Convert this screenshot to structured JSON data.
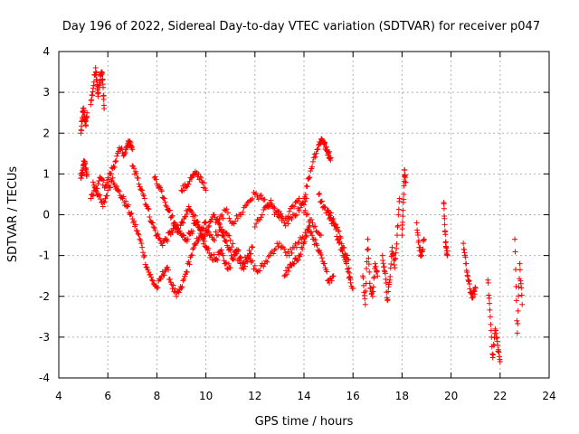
{
  "chart_data": {
    "type": "scatter",
    "title": "Day 196 of 2022, Sidereal Day-to-day VTEC variation (SDTVAR) for receiver p047",
    "xlabel": "GPS time / hours",
    "ylabel": "SDTVAR / TECUs",
    "xlim": [
      4,
      24
    ],
    "ylim": [
      -4,
      4
    ],
    "xticks": [
      "4",
      "6",
      "8",
      "10",
      "12",
      "14",
      "16",
      "18",
      "20",
      "22",
      "24"
    ],
    "yticks": [
      "-4",
      "-3",
      "-2",
      "-1",
      "0",
      "1",
      "2",
      "3",
      "4"
    ],
    "grid": true,
    "marker": "+",
    "color": "#ff0000",
    "series": [
      {
        "name": "SDTVAR",
        "segments": [
          {
            "x": [
              4.9,
              4.95,
              5.0,
              5.05,
              5.1,
              5.15
            ],
            "y": [
              2.0,
              2.3,
              2.6,
              2.4,
              2.2,
              2.5
            ]
          },
          {
            "x": [
              4.9,
              4.95,
              5.0,
              5.05,
              5.1,
              5.15
            ],
            "y": [
              0.9,
              1.0,
              1.2,
              1.3,
              1.1,
              1.0
            ]
          },
          {
            "x": [
              5.3,
              5.4,
              5.5,
              5.55,
              5.6,
              5.7,
              5.75,
              5.8,
              5.85
            ],
            "y": [
              2.7,
              3.1,
              3.6,
              3.3,
              2.9,
              3.4,
              3.5,
              3.2,
              2.6
            ]
          },
          {
            "x": [
              5.3,
              5.5,
              5.7,
              5.9,
              6.1,
              6.3,
              6.5,
              6.7,
              6.8,
              6.9,
              7.0
            ],
            "y": [
              0.4,
              0.6,
              0.9,
              0.7,
              1.0,
              1.3,
              1.6,
              1.5,
              1.7,
              1.8,
              1.6
            ]
          },
          {
            "x": [
              5.4,
              5.6,
              5.8,
              6.0,
              6.2,
              6.4,
              6.6,
              6.8,
              7.0,
              7.2,
              7.4,
              7.6,
              7.8,
              8.0,
              8.2,
              8.4,
              8.6,
              8.8,
              9.0,
              9.2,
              9.4,
              9.6,
              9.8,
              10.0
            ],
            "y": [
              0.8,
              0.5,
              0.2,
              0.6,
              0.9,
              0.6,
              0.4,
              0.2,
              -0.1,
              -0.4,
              -0.8,
              -1.3,
              -1.6,
              -1.8,
              -1.5,
              -1.3,
              -1.7,
              -2.0,
              -1.8,
              -1.4,
              -1.0,
              -0.7,
              -0.4,
              -0.2
            ]
          },
          {
            "x": [
              7.0,
              7.2,
              7.4,
              7.6,
              7.8,
              8.0,
              8.2,
              8.4,
              8.6,
              8.8,
              9.0,
              9.2,
              9.4,
              9.6,
              9.8,
              10.0,
              10.2,
              10.4,
              10.6,
              10.8,
              11.0
            ],
            "y": [
              1.2,
              0.9,
              0.6,
              0.2,
              -0.2,
              -0.5,
              -0.7,
              -0.6,
              -0.4,
              -0.3,
              -0.5,
              -0.6,
              -0.4,
              -0.2,
              -0.5,
              -0.8,
              -1.0,
              -1.1,
              -0.9,
              -1.2,
              -1.3
            ]
          },
          {
            "x": [
              7.9,
              8.1,
              8.3,
              8.5,
              8.7,
              8.9,
              9.1,
              9.3,
              9.5,
              9.7,
              9.9,
              10.1,
              10.3,
              10.5,
              10.7,
              10.9,
              11.1,
              11.3,
              11.5,
              11.7,
              11.9
            ],
            "y": [
              0.9,
              0.7,
              0.4,
              0.1,
              -0.2,
              -0.4,
              -0.1,
              0.2,
              0.0,
              -0.3,
              -0.6,
              -0.3,
              0.0,
              -0.2,
              -0.5,
              -0.8,
              -1.1,
              -0.9,
              -1.2,
              -1.0,
              -0.8
            ]
          },
          {
            "x": [
              9.0,
              9.2,
              9.4,
              9.6,
              9.8,
              10.0
            ],
            "y": [
              0.6,
              0.7,
              0.9,
              1.0,
              0.9,
              0.6
            ]
          },
          {
            "x": [
              10.0,
              10.3,
              10.6,
              10.9,
              11.2,
              11.5,
              11.8,
              12.1,
              12.4,
              12.7,
              13.0,
              13.3,
              13.6,
              13.9,
              14.2
            ],
            "y": [
              -0.4,
              -0.6,
              -0.3,
              -0.5,
              -0.9,
              -1.3,
              -1.1,
              -1.4,
              -1.2,
              -0.9,
              -0.7,
              -1.0,
              -0.8,
              -0.6,
              -0.4
            ]
          },
          {
            "x": [
              10.5,
              10.8,
              11.1,
              11.4,
              11.7,
              12.0,
              12.3,
              12.6,
              12.9,
              13.2,
              13.5,
              13.8,
              14.1
            ],
            "y": [
              -0.2,
              0.1,
              -0.2,
              0.0,
              0.3,
              0.5,
              0.4,
              0.2,
              0.0,
              -0.2,
              -0.1,
              0.1,
              0.4
            ]
          },
          {
            "x": [
              12.0,
              12.3,
              12.6,
              12.9,
              13.2,
              13.5,
              13.8,
              14.1,
              14.4,
              14.7
            ],
            "y": [
              -0.3,
              0.0,
              0.3,
              0.1,
              -0.2,
              0.2,
              0.4,
              0.0,
              -0.3,
              -0.5
            ]
          },
          {
            "x": [
              13.2,
              13.4,
              13.6,
              13.8,
              14.0,
              14.2,
              14.4,
              14.6,
              14.8,
              15.0,
              15.2
            ],
            "y": [
              -1.5,
              -1.3,
              -1.2,
              -1.0,
              -0.7,
              -0.3,
              -0.6,
              -0.9,
              -1.2,
              -1.6,
              -1.5
            ]
          },
          {
            "x": [
              14.0,
              14.2,
              14.4,
              14.6,
              14.7,
              14.8,
              14.9,
              15.0,
              15.1
            ],
            "y": [
              0.4,
              0.9,
              1.4,
              1.7,
              1.85,
              1.8,
              1.6,
              1.5,
              1.4
            ]
          },
          {
            "x": [
              14.6,
              14.8,
              15.0,
              15.2,
              15.4,
              15.6,
              15.8,
              16.0
            ],
            "y": [
              0.5,
              0.2,
              0.0,
              -0.2,
              -0.6,
              -1.0,
              -1.4,
              -1.8
            ]
          },
          {
            "x": [
              15.0,
              15.2,
              15.4,
              15.6,
              15.8,
              15.9
            ],
            "y": [
              0.1,
              -0.1,
              -0.4,
              -0.8,
              -1.1,
              -1.6
            ]
          },
          {
            "x": [
              16.4,
              16.5,
              16.6,
              16.7,
              16.8,
              16.9,
              17.0
            ],
            "y": [
              -1.5,
              -2.2,
              -0.6,
              -1.8,
              -2.0,
              -1.2,
              -1.5
            ]
          },
          {
            "x": [
              17.2,
              17.3,
              17.4,
              17.5,
              17.6,
              17.7,
              17.8,
              17.9
            ],
            "y": [
              -1.0,
              -1.4,
              -2.1,
              -1.6,
              -0.8,
              -1.3,
              -0.5,
              0.4
            ]
          },
          {
            "x": [
              18.0,
              18.05,
              18.1,
              18.15
            ],
            "y": [
              -0.5,
              0.3,
              1.1,
              0.8
            ]
          },
          {
            "x": [
              18.6,
              18.7,
              18.8,
              18.9
            ],
            "y": [
              -0.2,
              -0.8,
              -1.0,
              -0.6
            ]
          },
          {
            "x": [
              19.7,
              19.75,
              19.8,
              19.85
            ],
            "y": [
              0.3,
              -0.4,
              -0.8,
              -1.0
            ]
          },
          {
            "x": [
              20.5,
              20.6,
              20.7,
              20.8,
              20.9,
              21.0
            ],
            "y": [
              -0.7,
              -1.2,
              -1.6,
              -1.9,
              -2.0,
              -1.8
            ]
          },
          {
            "x": [
              21.5,
              21.6,
              21.7,
              21.8,
              21.9,
              22.0
            ],
            "y": [
              -1.6,
              -2.5,
              -3.5,
              -2.8,
              -3.2,
              -3.6
            ]
          },
          {
            "x": [
              22.6,
              22.7,
              22.8,
              22.9
            ],
            "y": [
              -0.6,
              -2.9,
              -1.2,
              -2.2
            ]
          }
        ]
      }
    ]
  }
}
